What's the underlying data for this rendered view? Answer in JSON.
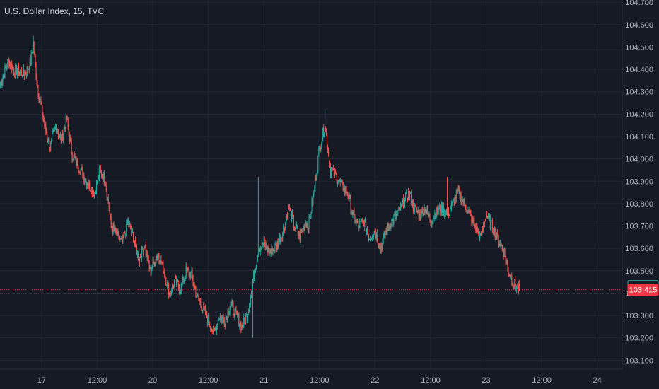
{
  "chart_data": {
    "type": "candlestick",
    "title": "U.S. Dollar Index, 15, TVC",
    "y_axis": {
      "ylim": [
        103.06,
        104.71
      ],
      "ticks": [
        "104.700",
        "104.600",
        "104.500",
        "104.400",
        "104.300",
        "104.200",
        "104.100",
        "104.000",
        "103.900",
        "103.800",
        "103.700",
        "103.600",
        "103.500",
        "103.400",
        "103.300",
        "103.200",
        "103.100"
      ],
      "position": "right"
    },
    "x_axis": {
      "ticks": [
        {
          "label": "17",
          "x": 4
        },
        {
          "label": "12:00",
          "x": 14
        },
        {
          "label": "20",
          "x": 24
        },
        {
          "label": "12:00",
          "x": 34
        },
        {
          "label": "21",
          "x": 44
        },
        {
          "label": "12:00",
          "x": 54
        },
        {
          "label": "22",
          "x": 64
        },
        {
          "label": "12:00",
          "x": 74
        },
        {
          "label": "23",
          "x": 84
        },
        {
          "label": "12:00",
          "x": 94
        },
        {
          "label": "24",
          "x": 104
        }
      ],
      "xlim": [
        -3.5,
        108.5
      ]
    },
    "colors": {
      "up": "#26a69a",
      "down": "#ef5350",
      "grid": "#242733",
      "text": "#b2b5be",
      "background": "#161a25"
    },
    "price_tags": [
      {
        "value": 103.431,
        "label": "103.431",
        "style": "outline",
        "color": "#26a69a"
      },
      {
        "value": 103.415,
        "label": "103.415",
        "style": "filled",
        "color": "#f23645",
        "dotted_line": true
      }
    ],
    "anchors": [
      [
        -3.5,
        104.33
      ],
      [
        -2,
        104.44
      ],
      [
        -1,
        104.4
      ],
      [
        1,
        104.38
      ],
      [
        2,
        104.43
      ],
      [
        2.5,
        104.52
      ],
      [
        3.2,
        104.33
      ],
      [
        4.5,
        104.15
      ],
      [
        5.5,
        104.05
      ],
      [
        6.5,
        104.15
      ],
      [
        7.5,
        104.08
      ],
      [
        8.5,
        104.18
      ],
      [
        9.5,
        104.02
      ],
      [
        11,
        103.95
      ],
      [
        12.5,
        103.88
      ],
      [
        13.5,
        103.85
      ],
      [
        14.5,
        103.95
      ],
      [
        15.5,
        103.9
      ],
      [
        16.5,
        103.7
      ],
      [
        18.5,
        103.62
      ],
      [
        19.5,
        103.72
      ],
      [
        20.5,
        103.65
      ],
      [
        21.5,
        103.55
      ],
      [
        22.5,
        103.62
      ],
      [
        23.5,
        103.5
      ],
      [
        25,
        103.58
      ],
      [
        26,
        103.5
      ],
      [
        27,
        103.4
      ],
      [
        28,
        103.45
      ],
      [
        29,
        103.42
      ],
      [
        30,
        103.5
      ],
      [
        31,
        103.48
      ],
      [
        32,
        103.38
      ],
      [
        34,
        103.28
      ],
      [
        35,
        103.22
      ],
      [
        36,
        103.3
      ],
      [
        37,
        103.28
      ],
      [
        38,
        103.35
      ],
      [
        39,
        103.3
      ],
      [
        40,
        103.25
      ],
      [
        41,
        103.3
      ],
      [
        42,
        103.45
      ],
      [
        43,
        103.6
      ],
      [
        44,
        103.62
      ],
      [
        45,
        103.58
      ],
      [
        46,
        103.6
      ],
      [
        47.5,
        103.68
      ],
      [
        48.5,
        103.78
      ],
      [
        49.5,
        103.7
      ],
      [
        50.5,
        103.65
      ],
      [
        51.5,
        103.72
      ],
      [
        52,
        103.7
      ],
      [
        53,
        103.85
      ],
      [
        54,
        104.05
      ],
      [
        55,
        104.15
      ],
      [
        56,
        103.95
      ],
      [
        57,
        103.92
      ],
      [
        58,
        103.88
      ],
      [
        59,
        103.85
      ],
      [
        60,
        103.75
      ],
      [
        61,
        103.7
      ],
      [
        62,
        103.72
      ],
      [
        63,
        103.65
      ],
      [
        64,
        103.68
      ],
      [
        65,
        103.6
      ],
      [
        66,
        103.68
      ],
      [
        67,
        103.72
      ],
      [
        68,
        103.75
      ],
      [
        69,
        103.8
      ],
      [
        70,
        103.85
      ],
      [
        71,
        103.78
      ],
      [
        72,
        103.75
      ],
      [
        73,
        103.78
      ],
      [
        74,
        103.72
      ],
      [
        75,
        103.76
      ],
      [
        76,
        103.78
      ],
      [
        77,
        103.75
      ],
      [
        78,
        103.8
      ],
      [
        79,
        103.85
      ],
      [
        80,
        103.8
      ],
      [
        81,
        103.75
      ],
      [
        82,
        103.7
      ],
      [
        83,
        103.65
      ],
      [
        84,
        103.75
      ],
      [
        85,
        103.7
      ],
      [
        86,
        103.65
      ],
      [
        87,
        103.6
      ],
      [
        88,
        103.5
      ],
      [
        89,
        103.44
      ],
      [
        90,
        103.415
      ]
    ],
    "spikes": [
      [
        2.5,
        104.55
      ],
      [
        43,
        103.92
      ],
      [
        55,
        104.21
      ],
      [
        77,
        103.92
      ],
      [
        42,
        103.2
      ]
    ]
  }
}
